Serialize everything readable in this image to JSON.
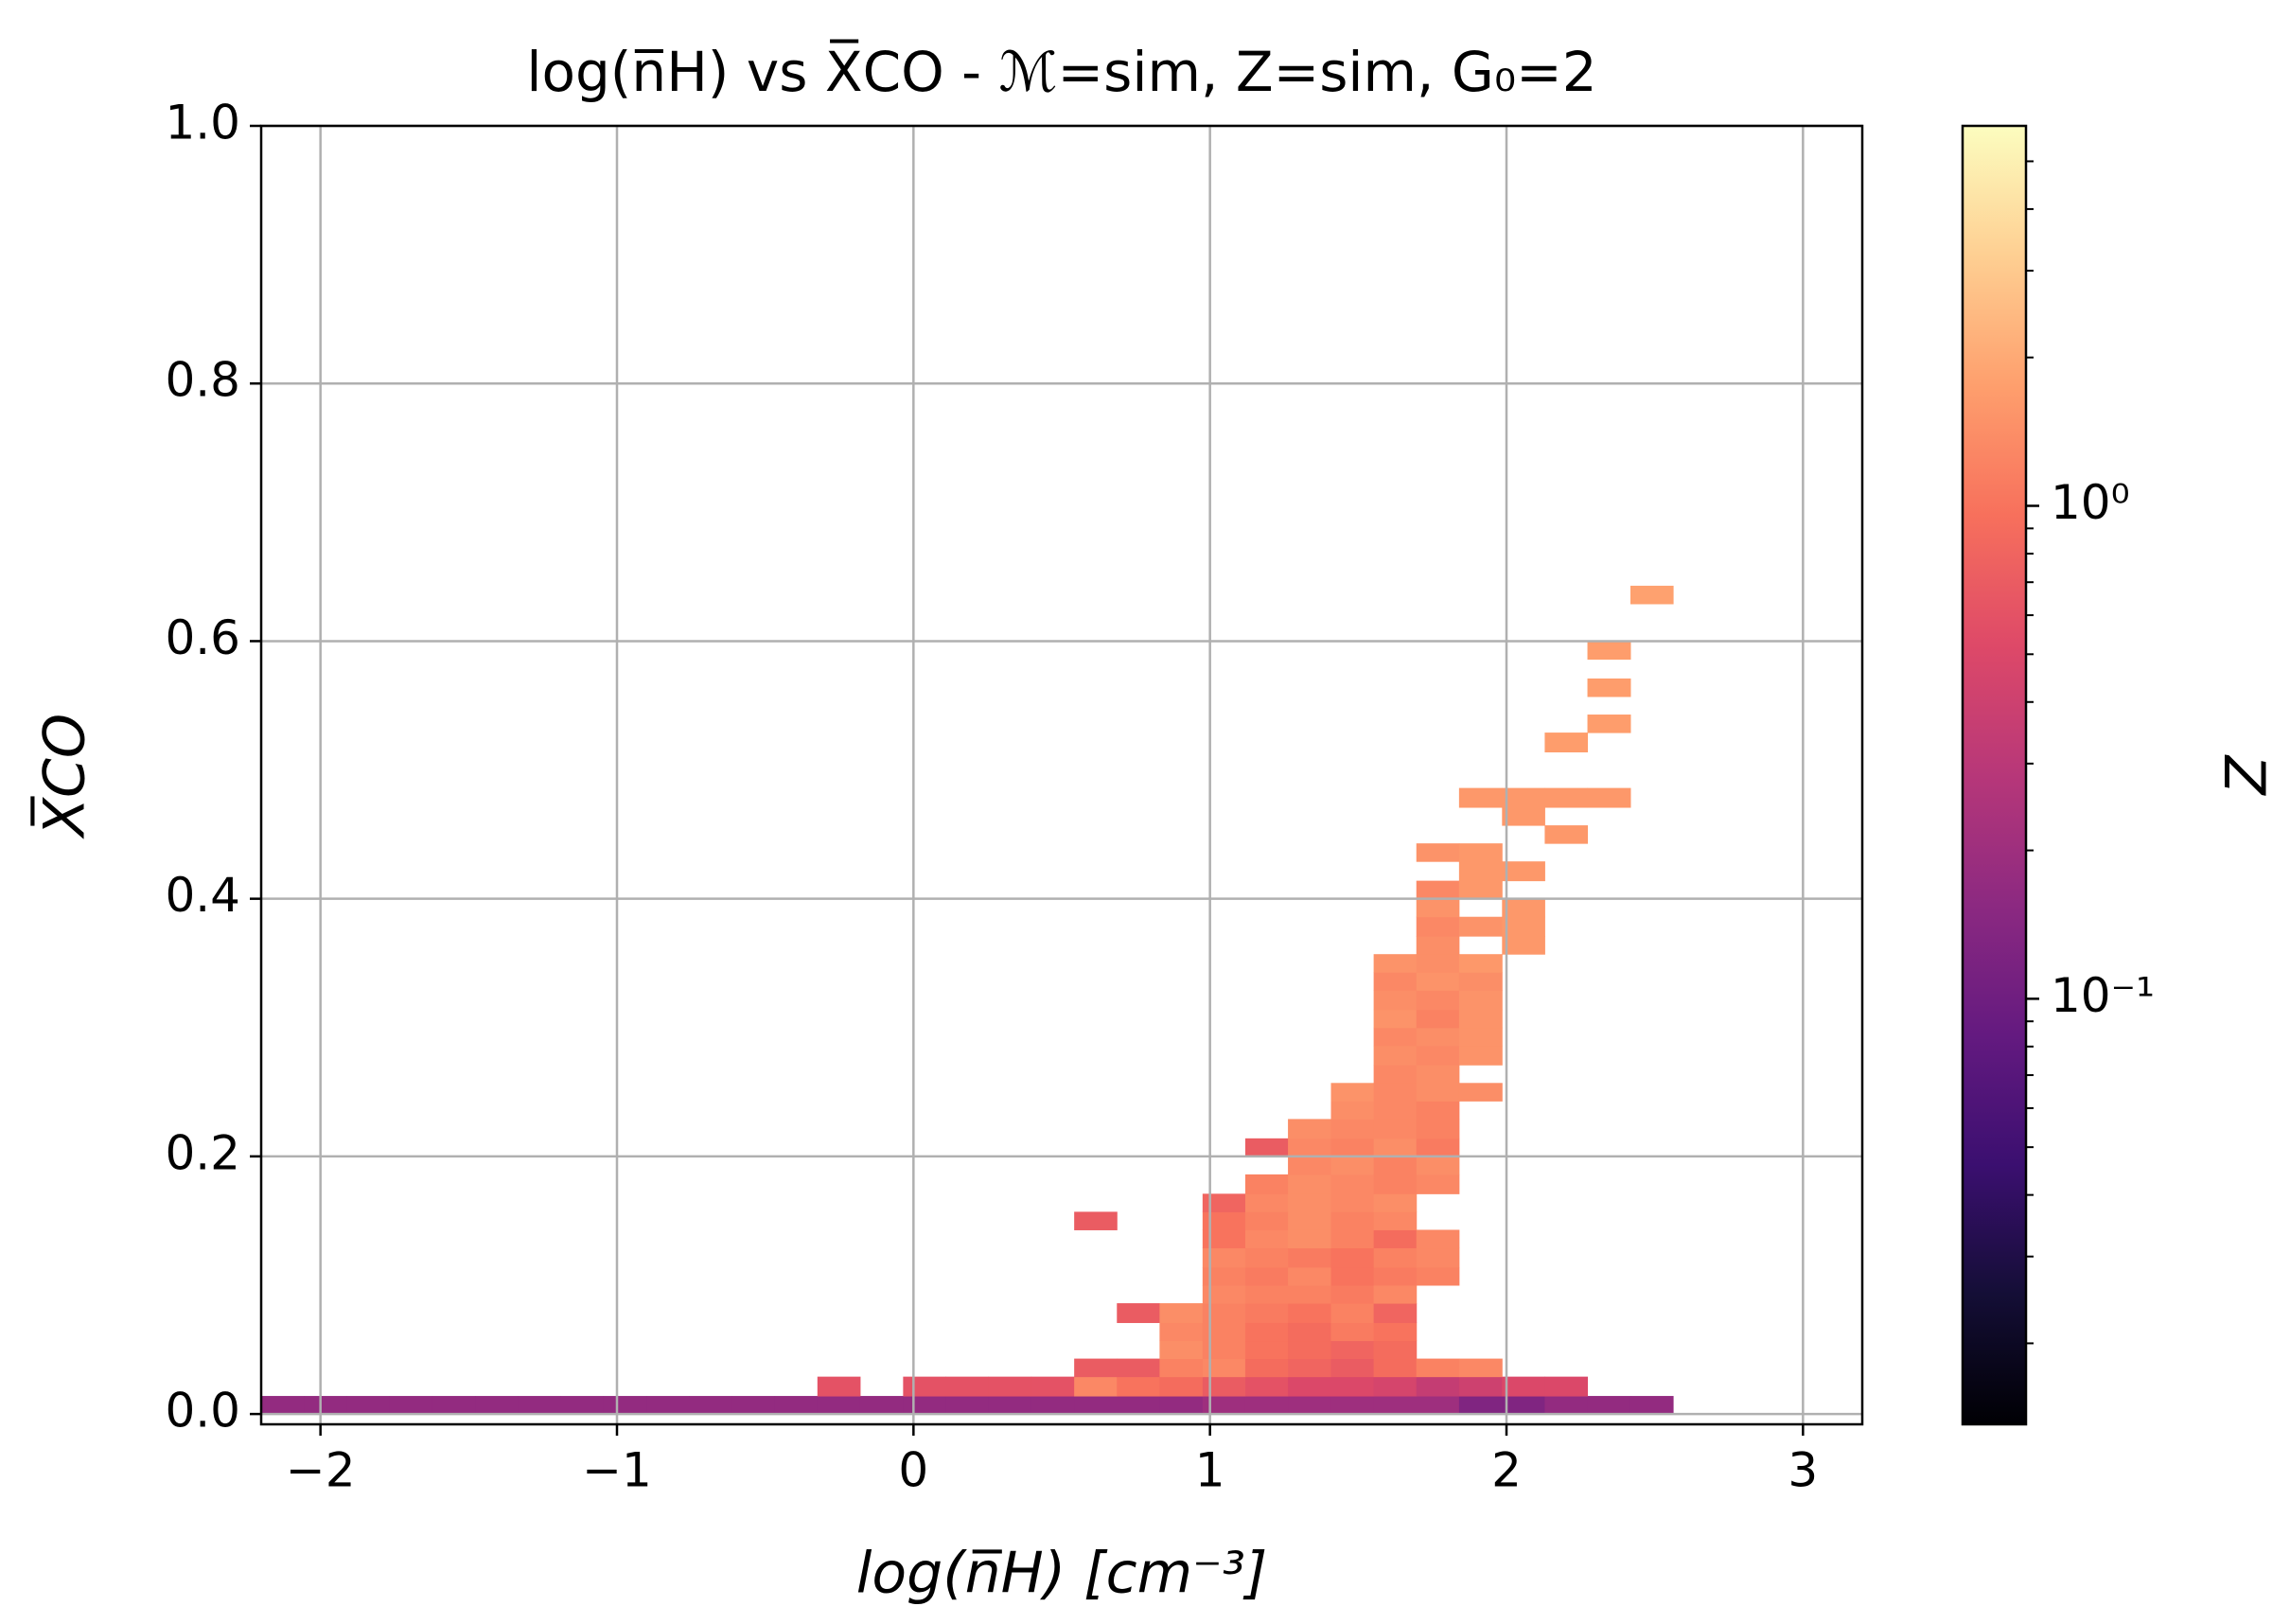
{
  "chart_data": {
    "type": "heatmap2d",
    "title": "log(n̅H) vs X̅CO - ℳ=sim, Z=sim, G₀=2",
    "xlabel": "log(n̅H) [cm⁻³]",
    "ylabel": "X̅CO",
    "zlabel": "Z",
    "xlim": [
      -2.2,
      3.2
    ],
    "ylim": [
      -0.008,
      1.0
    ],
    "xticks": [
      {
        "value": -2,
        "label": "−2"
      },
      {
        "value": -1,
        "label": "−1"
      },
      0,
      1,
      2,
      3
    ],
    "yticks": [
      {
        "value": 0,
        "label": "0.0"
      },
      0.2,
      0.4,
      0.6,
      0.8,
      {
        "value": 1,
        "label": "1.0"
      }
    ],
    "zlim": [
      0.0137,
      5.9
    ],
    "zscale": "log",
    "zticks": [
      {
        "value": 0.1,
        "label": "10⁻¹"
      },
      {
        "value": 1,
        "label": "10⁰"
      }
    ],
    "zminorticks": [
      0.02,
      0.03,
      0.04,
      0.05,
      0.06,
      0.07,
      0.08,
      0.09,
      0.2,
      0.3,
      0.4,
      0.5,
      0.6,
      0.7,
      0.8,
      0.9,
      2,
      3,
      4,
      5
    ],
    "colormap": "magma",
    "grid": true,
    "cells": [
      [
        -2.2,
        -2.056,
        0,
        0.014,
        0.17
      ],
      [
        -2.056,
        -1.911,
        0,
        0.014,
        0.17
      ],
      [
        -1.911,
        -1.767,
        0,
        0.014,
        0.17
      ],
      [
        -1.767,
        -1.623,
        0,
        0.014,
        0.17
      ],
      [
        -1.623,
        -1.478,
        0,
        0.014,
        0.17
      ],
      [
        -1.478,
        -1.334,
        0,
        0.014,
        0.17
      ],
      [
        -1.334,
        -1.19,
        0,
        0.014,
        0.17
      ],
      [
        -1.19,
        -1.046,
        0,
        0.014,
        0.17
      ],
      [
        -1.046,
        -0.901,
        0,
        0.014,
        0.17
      ],
      [
        -0.901,
        -0.757,
        0,
        0.014,
        0.17
      ],
      [
        -0.757,
        -0.613,
        0,
        0.014,
        0.17
      ],
      [
        -0.613,
        -0.468,
        0,
        0.014,
        0.17
      ],
      [
        -0.468,
        -0.324,
        0,
        0.014,
        0.17
      ],
      [
        -0.324,
        -0.18,
        0,
        0.014,
        0.17
      ],
      [
        -0.18,
        -0.035,
        0,
        0.014,
        0.17
      ],
      [
        -0.035,
        0.109,
        0,
        0.014,
        0.17
      ],
      [
        0.109,
        0.253,
        0,
        0.014,
        0.17
      ],
      [
        0.253,
        0.397,
        0,
        0.014,
        0.17
      ],
      [
        0.397,
        0.542,
        0,
        0.014,
        0.17
      ],
      [
        0.542,
        0.686,
        0,
        0.014,
        0.17
      ],
      [
        0.686,
        0.83,
        0,
        0.014,
        0.17
      ],
      [
        0.83,
        0.975,
        0,
        0.014,
        0.17
      ],
      [
        0.975,
        1.119,
        0,
        0.014,
        0.2
      ],
      [
        1.119,
        1.263,
        0,
        0.014,
        0.2
      ],
      [
        1.263,
        1.408,
        0,
        0.014,
        0.2
      ],
      [
        1.408,
        1.552,
        0,
        0.014,
        0.2
      ],
      [
        1.552,
        1.696,
        0,
        0.014,
        0.2
      ],
      [
        1.696,
        1.84,
        0,
        0.014,
        0.2
      ],
      [
        1.84,
        1.985,
        0,
        0.014,
        0.13
      ],
      [
        1.985,
        2.129,
        0,
        0.014,
        0.13
      ],
      [
        2.129,
        2.273,
        0,
        0.014,
        0.17
      ],
      [
        2.273,
        2.418,
        0,
        0.014,
        0.17
      ],
      [
        2.418,
        2.562,
        0,
        0.014,
        0.17
      ],
      [
        -0.324,
        -0.18,
        0.014,
        0.029,
        0.6
      ],
      [
        -0.035,
        0.109,
        0.014,
        0.029,
        0.6
      ],
      [
        0.109,
        0.253,
        0.014,
        0.029,
        0.6
      ],
      [
        0.253,
        0.397,
        0.014,
        0.029,
        0.6
      ],
      [
        0.397,
        0.542,
        0.014,
        0.029,
        0.6
      ],
      [
        0.542,
        0.686,
        0.014,
        0.029,
        1.3
      ],
      [
        0.686,
        0.83,
        0.014,
        0.029,
        1.0
      ],
      [
        0.83,
        0.975,
        0.014,
        0.029,
        0.9
      ],
      [
        0.975,
        1.119,
        0.014,
        0.029,
        0.7
      ],
      [
        1.119,
        1.263,
        0.014,
        0.029,
        0.6
      ],
      [
        1.263,
        1.408,
        0.014,
        0.029,
        0.5
      ],
      [
        1.408,
        1.552,
        0.014,
        0.029,
        0.5
      ],
      [
        1.552,
        1.696,
        0.014,
        0.029,
        0.45
      ],
      [
        1.696,
        1.84,
        0.014,
        0.029,
        0.35
      ],
      [
        1.84,
        1.985,
        0.014,
        0.029,
        0.4
      ],
      [
        1.985,
        2.129,
        0.014,
        0.029,
        0.5
      ],
      [
        2.129,
        2.273,
        0.014,
        0.029,
        0.5
      ],
      [
        0.542,
        0.686,
        0.029,
        0.043,
        0.7
      ],
      [
        0.686,
        0.83,
        0.029,
        0.043,
        0.7
      ],
      [
        0.83,
        0.975,
        0.029,
        0.043,
        1.2
      ],
      [
        0.975,
        1.119,
        0.029,
        0.043,
        1.3
      ],
      [
        1.119,
        1.263,
        0.029,
        0.043,
        0.9
      ],
      [
        1.263,
        1.408,
        0.029,
        0.043,
        0.8
      ],
      [
        1.408,
        1.552,
        0.029,
        0.043,
        0.7
      ],
      [
        1.552,
        1.696,
        0.029,
        0.043,
        0.9
      ],
      [
        1.696,
        1.84,
        0.029,
        0.043,
        1.2
      ],
      [
        1.84,
        1.985,
        0.029,
        0.043,
        1.3
      ],
      [
        0.83,
        0.975,
        0.043,
        0.057,
        1.4
      ],
      [
        0.975,
        1.119,
        0.043,
        0.057,
        1.2
      ],
      [
        1.119,
        1.263,
        0.043,
        0.057,
        1.0
      ],
      [
        1.263,
        1.408,
        0.043,
        0.057,
        0.9
      ],
      [
        1.408,
        1.552,
        0.043,
        0.057,
        0.8
      ],
      [
        1.552,
        1.696,
        0.043,
        0.057,
        0.9
      ],
      [
        0.83,
        0.975,
        0.057,
        0.071,
        1.3
      ],
      [
        0.975,
        1.119,
        0.057,
        0.071,
        1.2
      ],
      [
        1.119,
        1.263,
        0.057,
        0.071,
        1.0
      ],
      [
        1.263,
        1.408,
        0.057,
        0.071,
        0.9
      ],
      [
        1.408,
        1.552,
        0.057,
        0.071,
        1.1
      ],
      [
        1.552,
        1.696,
        0.057,
        0.071,
        1.0
      ],
      [
        0.686,
        0.83,
        0.071,
        0.086,
        0.7
      ],
      [
        0.83,
        0.975,
        0.071,
        0.086,
        1.4
      ],
      [
        0.975,
        1.119,
        0.071,
        0.086,
        1.2
      ],
      [
        1.119,
        1.263,
        0.071,
        0.086,
        1.1
      ],
      [
        1.263,
        1.408,
        0.071,
        0.086,
        1.0
      ],
      [
        1.408,
        1.552,
        0.071,
        0.086,
        1.2
      ],
      [
        1.552,
        1.696,
        0.071,
        0.086,
        0.8
      ],
      [
        0.975,
        1.119,
        0.086,
        0.1,
        1.3
      ],
      [
        1.119,
        1.263,
        0.086,
        0.1,
        1.2
      ],
      [
        1.263,
        1.408,
        0.086,
        0.1,
        1.2
      ],
      [
        1.408,
        1.552,
        0.086,
        0.1,
        1.1
      ],
      [
        1.552,
        1.696,
        0.086,
        0.1,
        1.3
      ],
      [
        0.975,
        1.119,
        0.1,
        0.114,
        1.2
      ],
      [
        1.119,
        1.263,
        0.1,
        0.114,
        1.1
      ],
      [
        1.263,
        1.408,
        0.1,
        0.114,
        1.3
      ],
      [
        1.408,
        1.552,
        0.1,
        0.114,
        1.0
      ],
      [
        1.552,
        1.696,
        0.1,
        0.114,
        1.1
      ],
      [
        1.696,
        1.84,
        0.1,
        0.114,
        1.2
      ],
      [
        0.975,
        1.119,
        0.114,
        0.129,
        1.3
      ],
      [
        1.119,
        1.263,
        0.114,
        0.129,
        1.2
      ],
      [
        1.263,
        1.408,
        0.114,
        0.129,
        1.1
      ],
      [
        1.408,
        1.552,
        0.114,
        0.129,
        1.0
      ],
      [
        1.552,
        1.696,
        0.114,
        0.129,
        1.2
      ],
      [
        1.696,
        1.84,
        0.114,
        0.129,
        1.3
      ],
      [
        0.975,
        1.119,
        0.129,
        0.143,
        1.0
      ],
      [
        1.119,
        1.263,
        0.129,
        0.143,
        1.3
      ],
      [
        1.263,
        1.408,
        0.129,
        0.143,
        1.4
      ],
      [
        1.408,
        1.552,
        0.129,
        0.143,
        1.2
      ],
      [
        1.552,
        1.696,
        0.129,
        0.143,
        0.9
      ],
      [
        1.696,
        1.84,
        0.129,
        0.143,
        1.3
      ],
      [
        0.542,
        0.686,
        0.143,
        0.157,
        0.7
      ],
      [
        0.975,
        1.119,
        0.143,
        0.157,
        1.0
      ],
      [
        1.119,
        1.263,
        0.143,
        0.157,
        1.2
      ],
      [
        1.263,
        1.408,
        0.143,
        0.157,
        1.4
      ],
      [
        1.408,
        1.552,
        0.143,
        0.157,
        1.2
      ],
      [
        1.552,
        1.696,
        0.143,
        0.157,
        1.3
      ],
      [
        0.975,
        1.119,
        0.157,
        0.171,
        0.8
      ],
      [
        1.119,
        1.263,
        0.157,
        0.171,
        1.3
      ],
      [
        1.263,
        1.408,
        0.157,
        0.171,
        1.4
      ],
      [
        1.408,
        1.552,
        0.157,
        0.171,
        1.3
      ],
      [
        1.552,
        1.696,
        0.157,
        0.171,
        1.4
      ],
      [
        1.119,
        1.263,
        0.171,
        0.186,
        1.2
      ],
      [
        1.263,
        1.408,
        0.171,
        0.186,
        1.4
      ],
      [
        1.408,
        1.552,
        0.171,
        0.186,
        1.3
      ],
      [
        1.552,
        1.696,
        0.171,
        0.186,
        1.2
      ],
      [
        1.696,
        1.84,
        0.171,
        0.186,
        1.3
      ],
      [
        1.263,
        1.408,
        0.186,
        0.2,
        1.3
      ],
      [
        1.408,
        1.552,
        0.186,
        0.2,
        1.4
      ],
      [
        1.552,
        1.696,
        0.186,
        0.2,
        1.2
      ],
      [
        1.696,
        1.84,
        0.186,
        0.2,
        1.4
      ],
      [
        1.119,
        1.263,
        0.2,
        0.214,
        0.7
      ],
      [
        1.263,
        1.408,
        0.2,
        0.214,
        1.3
      ],
      [
        1.408,
        1.552,
        0.2,
        0.214,
        1.2
      ],
      [
        1.552,
        1.696,
        0.2,
        0.214,
        1.4
      ],
      [
        1.696,
        1.84,
        0.2,
        0.214,
        1.1
      ],
      [
        1.263,
        1.408,
        0.214,
        0.229,
        1.4
      ],
      [
        1.408,
        1.552,
        0.214,
        0.229,
        1.3
      ],
      [
        1.552,
        1.696,
        0.214,
        0.229,
        1.3
      ],
      [
        1.696,
        1.84,
        0.214,
        0.229,
        1.2
      ],
      [
        1.408,
        1.552,
        0.229,
        0.243,
        1.4
      ],
      [
        1.552,
        1.696,
        0.229,
        0.243,
        1.3
      ],
      [
        1.696,
        1.84,
        0.229,
        0.243,
        1.2
      ],
      [
        1.408,
        1.552,
        0.243,
        0.257,
        1.5
      ],
      [
        1.552,
        1.696,
        0.243,
        0.257,
        1.3
      ],
      [
        1.696,
        1.84,
        0.243,
        0.257,
        1.4
      ],
      [
        1.84,
        1.985,
        0.243,
        0.257,
        1.4
      ],
      [
        1.552,
        1.696,
        0.257,
        0.271,
        1.3
      ],
      [
        1.696,
        1.84,
        0.257,
        0.271,
        1.4
      ],
      [
        1.552,
        1.696,
        0.271,
        0.286,
        1.4
      ],
      [
        1.696,
        1.84,
        0.271,
        0.286,
        1.3
      ],
      [
        1.84,
        1.985,
        0.271,
        0.286,
        1.5
      ],
      [
        1.552,
        1.696,
        0.286,
        0.3,
        1.3
      ],
      [
        1.696,
        1.84,
        0.286,
        0.3,
        1.4
      ],
      [
        1.84,
        1.985,
        0.286,
        0.3,
        1.5
      ],
      [
        1.552,
        1.696,
        0.3,
        0.314,
        1.5
      ],
      [
        1.696,
        1.84,
        0.3,
        0.314,
        1.2
      ],
      [
        1.84,
        1.985,
        0.3,
        0.314,
        1.5
      ],
      [
        1.552,
        1.696,
        0.314,
        0.329,
        1.4
      ],
      [
        1.696,
        1.84,
        0.314,
        0.329,
        1.3
      ],
      [
        1.84,
        1.985,
        0.314,
        0.329,
        1.5
      ],
      [
        1.552,
        1.696,
        0.329,
        0.343,
        1.3
      ],
      [
        1.696,
        1.84,
        0.329,
        0.343,
        1.5
      ],
      [
        1.84,
        1.985,
        0.329,
        0.343,
        1.4
      ],
      [
        1.552,
        1.696,
        0.343,
        0.357,
        1.5
      ],
      [
        1.696,
        1.84,
        0.343,
        0.357,
        1.4
      ],
      [
        1.84,
        1.985,
        0.343,
        0.357,
        1.6
      ],
      [
        1.696,
        1.84,
        0.357,
        0.371,
        1.4
      ],
      [
        1.985,
        2.129,
        0.357,
        0.371,
        1.6
      ],
      [
        1.696,
        1.84,
        0.371,
        0.386,
        1.3
      ],
      [
        1.84,
        1.985,
        0.371,
        0.386,
        1.5
      ],
      [
        1.985,
        2.129,
        0.371,
        0.386,
        1.6
      ],
      [
        1.696,
        1.84,
        0.386,
        0.4,
        1.5
      ],
      [
        1.985,
        2.129,
        0.386,
        0.4,
        1.6
      ],
      [
        1.696,
        1.84,
        0.4,
        0.414,
        1.3
      ],
      [
        1.84,
        1.985,
        0.4,
        0.414,
        1.6
      ],
      [
        1.84,
        1.985,
        0.414,
        0.429,
        1.6
      ],
      [
        1.985,
        2.129,
        0.414,
        0.429,
        1.6
      ],
      [
        1.696,
        1.84,
        0.429,
        0.443,
        1.5
      ],
      [
        1.84,
        1.985,
        0.429,
        0.443,
        1.6
      ],
      [
        2.129,
        2.273,
        0.443,
        0.457,
        1.6
      ],
      [
        1.985,
        2.129,
        0.457,
        0.471,
        1.6
      ],
      [
        1.84,
        1.985,
        0.471,
        0.486,
        1.6
      ],
      [
        1.985,
        2.129,
        0.471,
        0.486,
        1.6
      ],
      [
        2.129,
        2.273,
        0.471,
        0.486,
        1.6
      ],
      [
        2.273,
        2.418,
        0.471,
        0.486,
        1.6
      ],
      [
        2.129,
        2.273,
        0.514,
        0.529,
        1.7
      ],
      [
        2.273,
        2.418,
        0.529,
        0.543,
        1.7
      ],
      [
        2.273,
        2.418,
        0.557,
        0.571,
        1.7
      ],
      [
        2.273,
        2.418,
        0.586,
        0.6,
        1.7
      ],
      [
        2.418,
        2.562,
        0.629,
        0.643,
        1.8
      ]
    ]
  }
}
